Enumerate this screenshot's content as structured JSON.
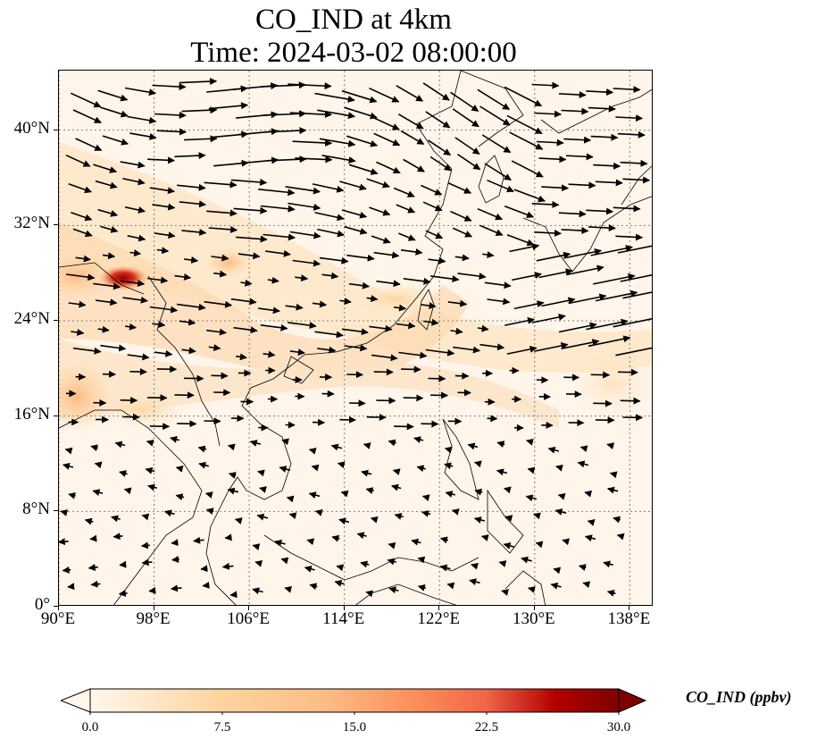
{
  "title": {
    "line1": "CO_IND at 4km",
    "line2": "Time: 2024-03-02 08:00:00"
  },
  "map": {
    "lon_range": [
      90,
      140
    ],
    "lat_range": [
      0,
      45
    ],
    "x_ticks": [
      "90°E",
      "98°E",
      "106°E",
      "114°E",
      "122°E",
      "130°E",
      "138°E"
    ],
    "x_tick_values": [
      90,
      98,
      106,
      114,
      122,
      130,
      138
    ],
    "y_ticks": [
      "0°",
      "8°N",
      "16°N",
      "24°N",
      "32°N",
      "40°N"
    ],
    "y_tick_values": [
      0,
      8,
      16,
      24,
      32,
      40
    ],
    "gridlines": "dotted",
    "field_variable": "CO_IND",
    "overlay": "wind vectors (black arrows)",
    "colors": {
      "low": "#fff5eb",
      "mid": "#fdae6b",
      "high": "#7f0000",
      "coast": "#000000",
      "grid": "#7f7f7f"
    }
  },
  "colorbar": {
    "label": "CO_IND (ppbv)",
    "ticks": [
      "0.0",
      "7.5",
      "15.0",
      "22.5",
      "30.0"
    ],
    "tick_values": [
      0,
      7.5,
      15,
      22.5,
      30
    ],
    "range": [
      0,
      30
    ],
    "extend": "both",
    "colormap": "OrRd"
  }
}
